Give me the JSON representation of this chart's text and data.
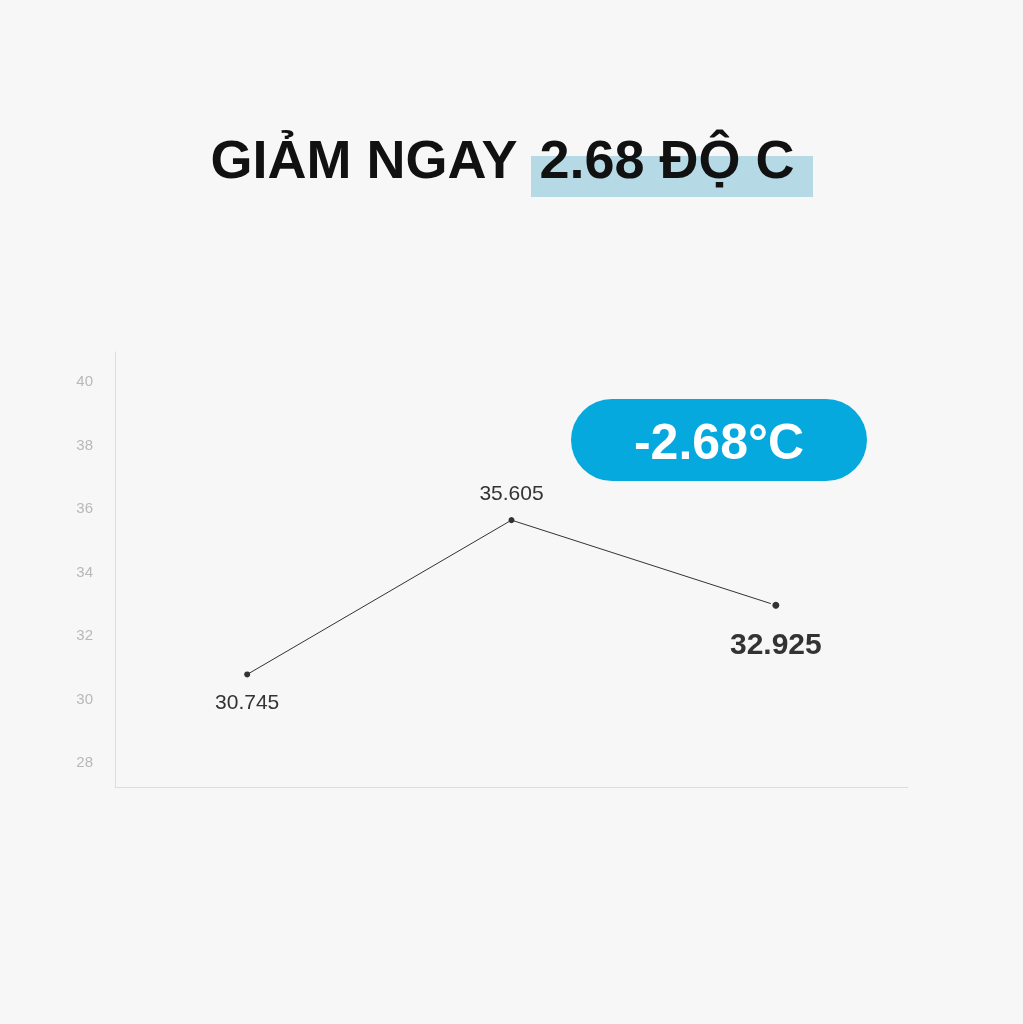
{
  "chart_data": {
    "type": "line",
    "title": "GIẢM NGAY 2.68 ĐỘ C",
    "annotations": [
      "-2.68°C"
    ],
    "categories": [
      null,
      null,
      null
    ],
    "series": [
      {
        "color": "#333333",
        "values": [
          30.745,
          35.605,
          32.925
        ]
      }
    ],
    "ylim": [
      27.2,
      40.9
    ],
    "yticks": [
      28,
      30,
      32,
      34,
      36,
      38,
      40
    ],
    "data_labels": true,
    "grid": false,
    "marker": "circle",
    "line_style": "solid",
    "tick_labels": "y"
  }
}
